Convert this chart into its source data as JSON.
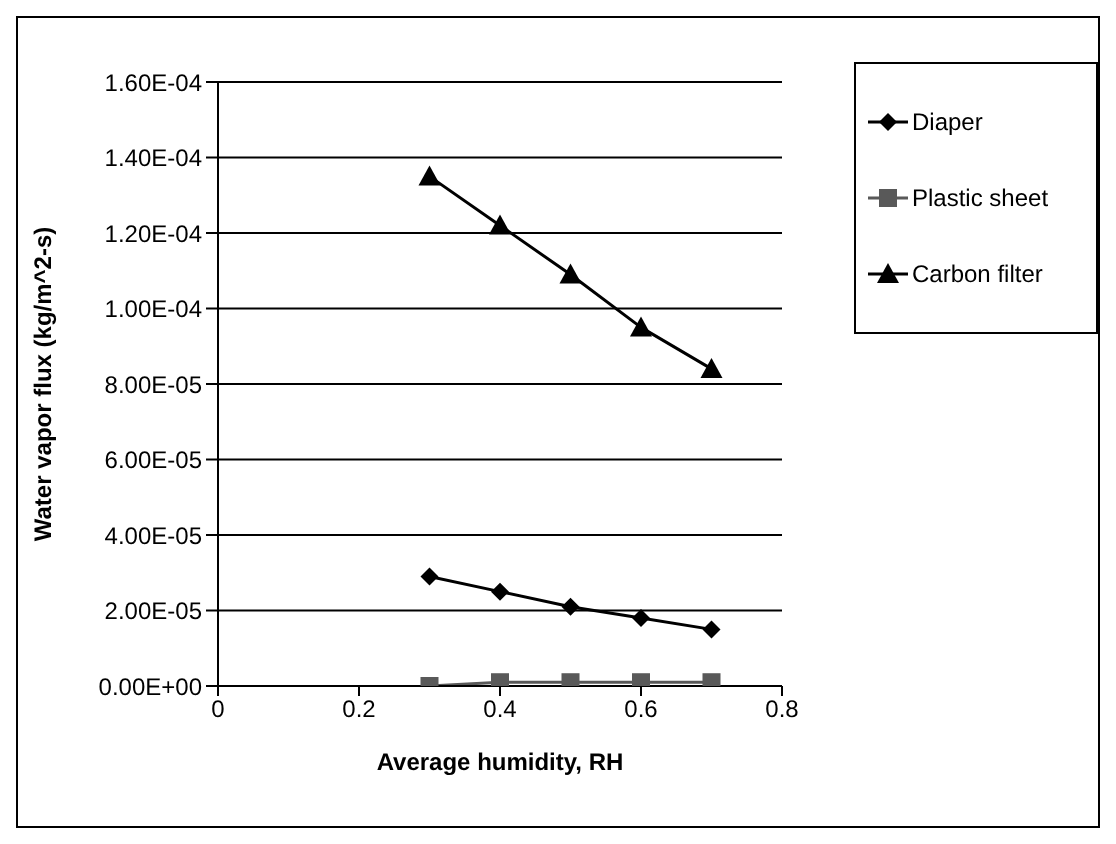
{
  "chart_data": {
    "type": "line",
    "xlabel": "Average humidity, RH",
    "ylabel": "Water vapor flux (kg/m^2-s)",
    "x": [
      0.3,
      0.4,
      0.5,
      0.6,
      0.7
    ],
    "series": [
      {
        "name": "Diaper",
        "color": "#000000",
        "marker": "diamond",
        "values": [
          2.9e-05,
          2.5e-05,
          2.1e-05,
          1.8e-05,
          1.5e-05
        ]
      },
      {
        "name": "Plastic sheet",
        "color": "#595959",
        "marker": "square",
        "values": [
          0,
          1e-06,
          1e-06,
          1e-06,
          1e-06
        ]
      },
      {
        "name": "Carbon filter",
        "color": "#000000",
        "marker": "triangle",
        "values": [
          0.000135,
          0.000122,
          0.000109,
          9.5e-05,
          8.4e-05
        ]
      }
    ],
    "xlim": [
      0,
      0.8
    ],
    "xticks": [
      0,
      0.2,
      0.4,
      0.6,
      0.8
    ],
    "ylim": [
      0,
      0.00016
    ],
    "yticks": [
      {
        "value": 0,
        "label": "0.00E+00"
      },
      {
        "value": 2e-05,
        "label": "2.00E-05"
      },
      {
        "value": 4e-05,
        "label": "4.00E-05"
      },
      {
        "value": 6e-05,
        "label": "6.00E-05"
      },
      {
        "value": 8e-05,
        "label": "8.00E-05"
      },
      {
        "value": 0.0001,
        "label": "1.00E-04"
      },
      {
        "value": 0.00012,
        "label": "1.20E-04"
      },
      {
        "value": 0.00014,
        "label": "1.40E-04"
      },
      {
        "value": 0.00016,
        "label": "1.60E-04"
      }
    ],
    "grid": "y",
    "legend": "top right"
  }
}
